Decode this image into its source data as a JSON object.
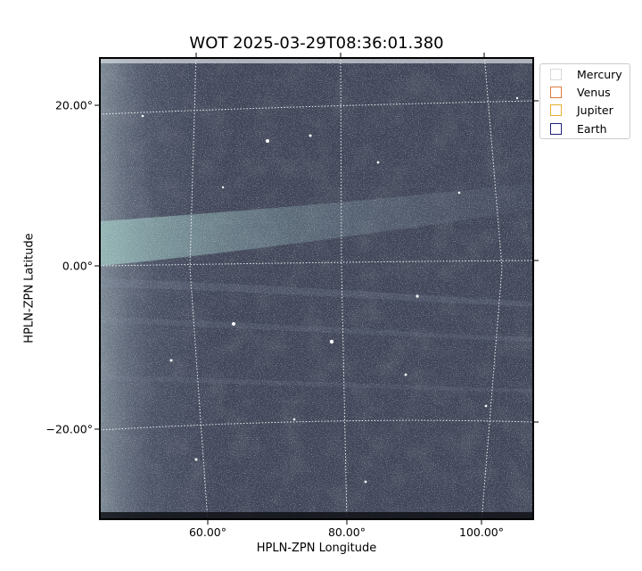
{
  "title": "WOT 2025-03-29T08:36:01.380",
  "xlabel": "HPLN-ZPN Longitude",
  "ylabel": "HPLN-ZPN Latitude",
  "xticks": [
    "60.00°",
    "80.00°",
    "100.00°"
  ],
  "yticks": [
    "20.00°",
    "0.00°",
    "−20.00°"
  ],
  "legend": [
    {
      "label": "Mercury",
      "color": "#d9d9d9"
    },
    {
      "label": "Venus",
      "color": "#e07b39"
    },
    {
      "label": "Jupiter",
      "color": "#e3b02e"
    },
    {
      "label": "Earth",
      "color": "#1f1f7a"
    }
  ],
  "colors": {
    "background": "#3d4354",
    "streak": "#8fb3b0",
    "frame": "#000000"
  }
}
